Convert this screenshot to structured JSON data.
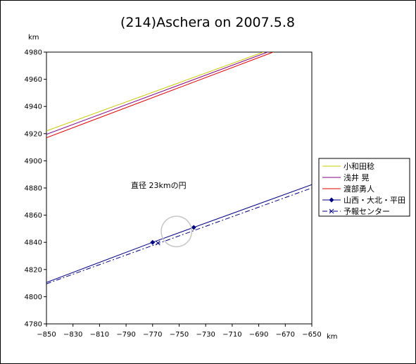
{
  "chart_data": {
    "type": "line",
    "title": "(214)Aschera on 2007.5.8",
    "xlabel": "km",
    "ylabel": "km",
    "xlim": [
      -850,
      -650
    ],
    "ylim": [
      4780,
      4980
    ],
    "xticks": [
      -850,
      -830,
      -810,
      -790,
      -770,
      -750,
      -730,
      -710,
      -690,
      -670,
      -650
    ],
    "yticks": [
      4780,
      4800,
      4820,
      4840,
      4860,
      4880,
      4900,
      4920,
      4940,
      4960,
      4980
    ],
    "xtick_labels": [
      "−850",
      "−830",
      "−810",
      "−790",
      "−770",
      "−750",
      "−730",
      "−710",
      "−690",
      "−670",
      "−650"
    ],
    "ytick_labels": [
      "4780",
      "4800",
      "4820",
      "4840",
      "4860",
      "4880",
      "4900",
      "4920",
      "4940",
      "4960",
      "4980"
    ],
    "grid": false,
    "legend_position": "right",
    "annotation": "直径 23kmの円",
    "annotation_at": [
      -765.5,
      4882
    ],
    "circle": {
      "center": [
        -752,
        4848
      ],
      "diameter": 23,
      "color": "#c8c8c8"
    },
    "series": [
      {
        "name": "小和田稔",
        "color": "#c8c800",
        "marker": "none",
        "dash": "solid",
        "points": [
          [
            -850,
            4922
          ],
          [
            -678,
            4983
          ]
        ]
      },
      {
        "name": "浅井 晃",
        "color": "#800080",
        "marker": "none",
        "dash": "solid",
        "points": [
          [
            -850,
            4919.5
          ],
          [
            -675,
            4983
          ]
        ]
      },
      {
        "name": "渡部勇人",
        "color": "#e00000",
        "marker": "none",
        "dash": "solid",
        "points": [
          [
            -850,
            4917
          ],
          [
            -671,
            4983
          ]
        ]
      },
      {
        "name": "山西・大北・平田",
        "color": "#000080",
        "marker": "diamond",
        "dash": "solid",
        "points": [
          [
            -850,
            4810.5
          ],
          [
            -770,
            4840
          ],
          [
            -739,
            4851
          ],
          [
            -650,
            4882.5
          ]
        ],
        "marked": [
          [
            -770,
            4840
          ],
          [
            -739,
            4851
          ]
        ]
      },
      {
        "name": "予報センター",
        "color": "#000080",
        "marker": "x",
        "dash": "dashdot",
        "points": [
          [
            -850,
            4809.5
          ],
          [
            -650,
            4880
          ]
        ],
        "marked": [
          [
            -766,
            4839.5
          ]
        ]
      }
    ]
  }
}
